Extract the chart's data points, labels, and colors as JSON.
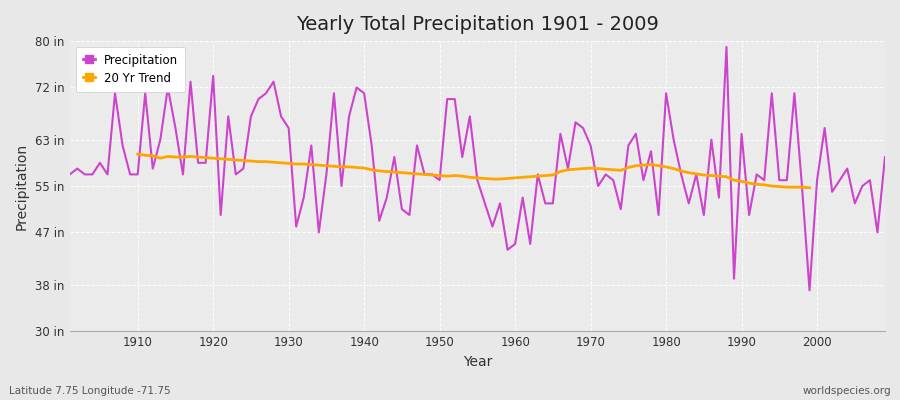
{
  "title": "Yearly Total Precipitation 1901 - 2009",
  "xlabel": "Year",
  "ylabel": "Precipitation",
  "subtitle_left": "Latitude 7.75 Longitude -71.75",
  "subtitle_right": "worldspecies.org",
  "ylim": [
    30,
    80
  ],
  "yticks": [
    30,
    38,
    47,
    55,
    63,
    72,
    80
  ],
  "ytick_labels": [
    "30 in",
    "38 in",
    "47 in",
    "55 in",
    "63 in",
    "72 in",
    "80 in"
  ],
  "xlim": [
    1901,
    2009
  ],
  "xticks": [
    1910,
    1920,
    1930,
    1940,
    1950,
    1960,
    1970,
    1980,
    1990,
    2000
  ],
  "precip_color": "#cc44cc",
  "trend_color": "#ffa500",
  "fig_bg_color": "#e8e8e8",
  "plot_bg_color": "#ebebeb",
  "legend_items": [
    "Precipitation",
    "20 Yr Trend"
  ],
  "years": [
    1901,
    1902,
    1903,
    1904,
    1905,
    1906,
    1907,
    1908,
    1909,
    1910,
    1911,
    1912,
    1913,
    1914,
    1915,
    1916,
    1917,
    1918,
    1919,
    1920,
    1921,
    1922,
    1923,
    1924,
    1925,
    1926,
    1927,
    1928,
    1929,
    1930,
    1931,
    1932,
    1933,
    1934,
    1935,
    1936,
    1937,
    1938,
    1939,
    1940,
    1941,
    1942,
    1943,
    1944,
    1945,
    1946,
    1947,
    1948,
    1949,
    1950,
    1951,
    1952,
    1953,
    1954,
    1955,
    1956,
    1957,
    1958,
    1959,
    1960,
    1961,
    1962,
    1963,
    1964,
    1965,
    1966,
    1967,
    1968,
    1969,
    1970,
    1971,
    1972,
    1973,
    1974,
    1975,
    1976,
    1977,
    1978,
    1979,
    1980,
    1981,
    1982,
    1983,
    1984,
    1985,
    1986,
    1987,
    1988,
    1989,
    1990,
    1991,
    1992,
    1993,
    1994,
    1995,
    1996,
    1997,
    1998,
    1999,
    2000,
    2001,
    2002,
    2003,
    2004,
    2005,
    2006,
    2007,
    2008,
    2009
  ],
  "precip": [
    57,
    58,
    57,
    57,
    59,
    57,
    71,
    62,
    57,
    57,
    71,
    58,
    63,
    72,
    65,
    57,
    73,
    59,
    59,
    74,
    50,
    67,
    57,
    58,
    67,
    70,
    71,
    73,
    67,
    65,
    48,
    53,
    62,
    47,
    57,
    71,
    55,
    67,
    72,
    71,
    62,
    49,
    53,
    60,
    51,
    50,
    62,
    57,
    57,
    56,
    70,
    70,
    60,
    67,
    56,
    52,
    48,
    52,
    44,
    45,
    53,
    45,
    57,
    52,
    52,
    64,
    58,
    66,
    65,
    62,
    55,
    57,
    56,
    51,
    62,
    64,
    56,
    61,
    50,
    71,
    63,
    57,
    52,
    57,
    50,
    63,
    53,
    79,
    39,
    64,
    50,
    57,
    56,
    71,
    56,
    56,
    71,
    55,
    37,
    56,
    65,
    54,
    56,
    58,
    52,
    55,
    56,
    47,
    60
  ],
  "trend": [
    null,
    null,
    null,
    null,
    null,
    null,
    null,
    null,
    null,
    60.5,
    60.3,
    60.2,
    59.8,
    60.1,
    60.0,
    60.0,
    60.1,
    60.0,
    59.9,
    59.8,
    59.7,
    59.6,
    59.5,
    59.4,
    59.3,
    59.2,
    59.2,
    59.1,
    59.0,
    58.9,
    58.8,
    58.8,
    58.7,
    58.6,
    58.5,
    58.4,
    58.3,
    58.3,
    58.2,
    58.1,
    57.8,
    57.6,
    57.5,
    57.4,
    57.3,
    57.2,
    57.1,
    57.0,
    56.9,
    56.8,
    56.7,
    56.8,
    56.7,
    56.5,
    56.4,
    56.3,
    56.2,
    56.2,
    56.3,
    56.4,
    56.5,
    56.6,
    56.7,
    56.8,
    56.9,
    57.5,
    57.8,
    57.9,
    58.0,
    58.1,
    58.0,
    57.9,
    57.8,
    57.7,
    58.2,
    58.5,
    58.6,
    58.7,
    58.5,
    58.3,
    58.0,
    57.6,
    57.3,
    57.1,
    56.9,
    56.8,
    56.7,
    56.6,
    56.0,
    55.8,
    55.5,
    55.3,
    55.2,
    55.0,
    54.9,
    54.8,
    54.8,
    54.8,
    54.7,
    null,
    null,
    null,
    null,
    null,
    null,
    null,
    null,
    null,
    null
  ]
}
